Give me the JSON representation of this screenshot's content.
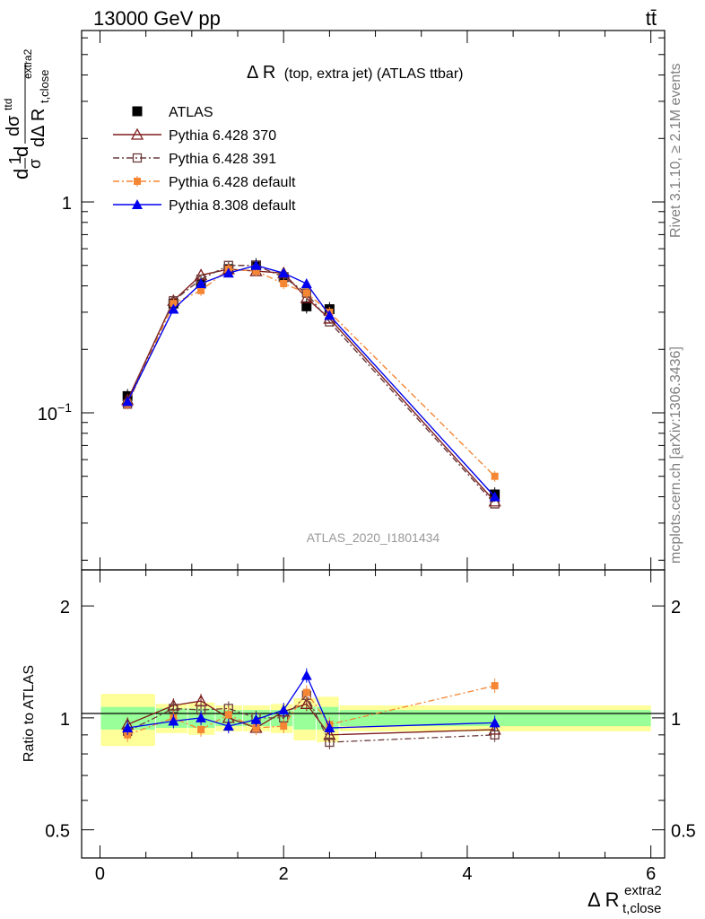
{
  "header": {
    "left": "13000 GeV pp",
    "right": "tt̄"
  },
  "side_labels": {
    "rivet": "Rivet 3.1.10, ≥ 2.1M events",
    "mcplots": "mcplots.cern.ch [arXiv:1306.3436]"
  },
  "chart_data": [
    {
      "type": "scatter",
      "panel": "main",
      "title": "Δ R (top, extra jet) (ATLAS ttbar)",
      "title_main": "Δ R",
      "title_sub": "(top, extra jet) (ATLAS ttbar)",
      "analysis_id": "ATLAS_2020_I1801434",
      "ylabel": "dσ^ttd / dΔ R_t,close^extra2 · 1/σ d",
      "ylabel_prefix": "d",
      "ylabel_frac1": "1",
      "ylabel_frac1_den": "σ",
      "ylabel_d": "d",
      "ylabel_num": "dσ",
      "ylabel_num_sup": "ttd",
      "ylabel_den": "dΔ R",
      "ylabel_den_sub": "t,close",
      "ylabel_den_sup": "extra2",
      "yscale": "log",
      "ylim": [
        0.018,
        6.5
      ],
      "xlim": [
        -0.2,
        6.15
      ],
      "y_tick_labels": [
        {
          "value": 0.1,
          "base": "10",
          "exp": "−1"
        },
        {
          "value": 1,
          "base": "1",
          "exp": ""
        }
      ],
      "legend_position": "top-left",
      "x": [
        0.3,
        0.8,
        1.1,
        1.4,
        1.7,
        2.0,
        2.25,
        2.5,
        4.3
      ],
      "series": [
        {
          "name": "ATLAS",
          "color": "#000000",
          "marker": "square-filled",
          "values": [
            0.12,
            0.33,
            0.41,
            0.48,
            0.5,
            0.44,
            0.32,
            0.31,
            0.041
          ]
        },
        {
          "name": "Pythia 6.428 370",
          "color": "#7f1d1d",
          "marker": "triangle-open",
          "line": "solid",
          "values": [
            0.115,
            0.34,
            0.45,
            0.48,
            0.47,
            0.46,
            0.35,
            0.28,
            0.038
          ]
        },
        {
          "name": "Pythia 6.428 391",
          "color": "#6b3b3b",
          "marker": "square-open",
          "line": "dashdot",
          "values": [
            0.11,
            0.34,
            0.43,
            0.5,
            0.5,
            0.44,
            0.37,
            0.27,
            0.037
          ]
        },
        {
          "name": "Pythia 6.428 default",
          "color": "#f58634",
          "marker": "square-filled-small",
          "line": "dashdot",
          "values": [
            0.11,
            0.33,
            0.38,
            0.48,
            0.47,
            0.41,
            0.37,
            0.3,
            0.05
          ]
        },
        {
          "name": "Pythia 8.308 default",
          "color": "#0000ee",
          "marker": "triangle-filled",
          "line": "solid",
          "values": [
            0.113,
            0.31,
            0.41,
            0.46,
            0.5,
            0.46,
            0.41,
            0.29,
            0.04
          ]
        }
      ]
    },
    {
      "type": "scatter",
      "panel": "ratio",
      "ylabel": "Ratio to ATLAS",
      "yscale": "log",
      "ylim": [
        0.42,
        2.5
      ],
      "xlim": [
        -0.2,
        6.15
      ],
      "y_tick_labels": [
        "0.5",
        "1",
        "2"
      ],
      "y_ticks": [
        0.5,
        1,
        2
      ],
      "x_tick_labels": [
        "0",
        "2",
        "4",
        "6"
      ],
      "x_ticks": [
        0,
        2,
        4,
        6
      ],
      "xlabel": "Δ R_t,close^extra2",
      "xlabel_main": "Δ R",
      "xlabel_sub": "t,close",
      "xlabel_sup": "extra2",
      "bins": [
        [
          0.0,
          0.6
        ],
        [
          0.6,
          0.95
        ],
        [
          0.95,
          1.25
        ],
        [
          1.25,
          1.55
        ],
        [
          1.55,
          1.85
        ],
        [
          1.85,
          2.1
        ],
        [
          2.1,
          2.35
        ],
        [
          2.35,
          2.6
        ],
        [
          2.6,
          6.0
        ]
      ],
      "band_stat_half": [
        0.07,
        0.06,
        0.06,
        0.05,
        0.05,
        0.05,
        0.07,
        0.07,
        0.05
      ],
      "band_total_half": [
        0.16,
        0.09,
        0.1,
        0.08,
        0.08,
        0.09,
        0.13,
        0.14,
        0.08
      ],
      "band_colors": {
        "total": "#ffff99",
        "stat": "#99ff99"
      },
      "x": [
        0.3,
        0.8,
        1.1,
        1.4,
        1.7,
        2.0,
        2.25,
        2.5,
        4.3
      ],
      "series": [
        {
          "name": "Pythia 6.428 370",
          "color": "#7f1d1d",
          "values": [
            0.96,
            1.08,
            1.11,
            1.0,
            0.94,
            1.04,
            1.09,
            0.9,
            0.93
          ]
        },
        {
          "name": "Pythia 6.428 391",
          "color": "#6b3b3b",
          "values": [
            0.92,
            1.06,
            1.05,
            1.06,
            1.0,
            1.0,
            1.15,
            0.86,
            0.9
          ]
        },
        {
          "name": "Pythia 6.428 default",
          "color": "#f58634",
          "values": [
            0.9,
            1.0,
            0.93,
            1.02,
            0.94,
            0.95,
            1.17,
            0.96,
            1.22
          ]
        },
        {
          "name": "Pythia 8.308 default",
          "color": "#0000ee",
          "values": [
            0.94,
            0.98,
            1.0,
            0.95,
            0.99,
            1.05,
            1.3,
            0.94,
            0.97
          ]
        }
      ]
    }
  ]
}
